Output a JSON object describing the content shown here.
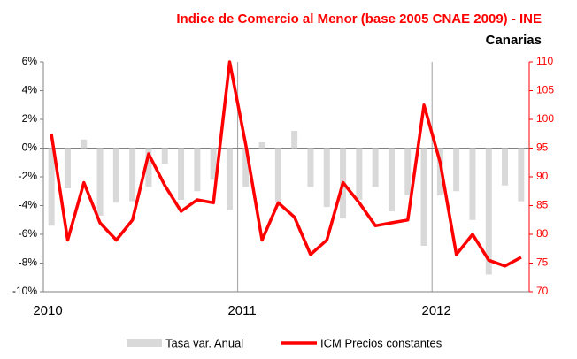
{
  "chart_data": {
    "type": "bar_line",
    "title": "Indice de Comercio al Menor (base 2005 CNAE 2009) - INE",
    "subtitle": "Canarias",
    "categories": [
      "2010",
      null,
      null,
      null,
      null,
      null,
      null,
      null,
      null,
      null,
      null,
      null,
      "2011",
      null,
      null,
      null,
      null,
      null,
      null,
      null,
      null,
      null,
      null,
      null,
      "2012",
      null,
      null,
      null,
      null,
      null
    ],
    "series": [
      {
        "name": "Tasa var. Anual",
        "color": "#d9d9d9",
        "kind": "bar",
        "axis": "y",
        "values": [
          -5.4,
          -2.8,
          0.6,
          -4.7,
          -3.8,
          -3.7,
          -2.7,
          -1.1,
          -3.6,
          -3.0,
          -2.2,
          -4.3,
          -2.7,
          0.4,
          -3.8,
          1.2,
          -2.7,
          -4.1,
          -4.9,
          -3.6,
          -2.7,
          -4.4,
          -3.3,
          -6.8,
          -3.3,
          -3.0,
          -5.0,
          -8.8,
          -2.6,
          -3.7
        ]
      },
      {
        "name": "ICM Precios constantes",
        "color": "#ff0000",
        "kind": "line",
        "axis": "y2",
        "values": [
          97.4,
          79,
          89,
          82,
          79,
          82.5,
          94,
          88.5,
          84,
          86,
          85.5,
          110,
          95.5,
          79,
          85.5,
          83,
          76.5,
          79,
          89,
          85.5,
          81.5,
          82,
          82.5,
          102.5,
          92.5,
          76.5,
          80,
          75.5,
          74.5,
          76
        ]
      }
    ],
    "ylim": [
      -10,
      6
    ],
    "yticks": [
      {
        "value": -10,
        "label": "-10%"
      },
      {
        "value": -8,
        "label": "-8%"
      },
      {
        "value": -6,
        "label": "-6%"
      },
      {
        "value": -4,
        "label": "-4%"
      },
      {
        "value": -2,
        "label": "-2%"
      },
      {
        "value": 0,
        "label": "0%"
      },
      {
        "value": 2,
        "label": "2%"
      },
      {
        "value": 4,
        "label": "4%"
      },
      {
        "value": 6,
        "label": "6%"
      }
    ],
    "y2lim": [
      70,
      110
    ],
    "y2ticks": [
      70,
      75,
      80,
      85,
      90,
      95,
      100,
      105,
      110
    ],
    "legend": "bottom"
  }
}
